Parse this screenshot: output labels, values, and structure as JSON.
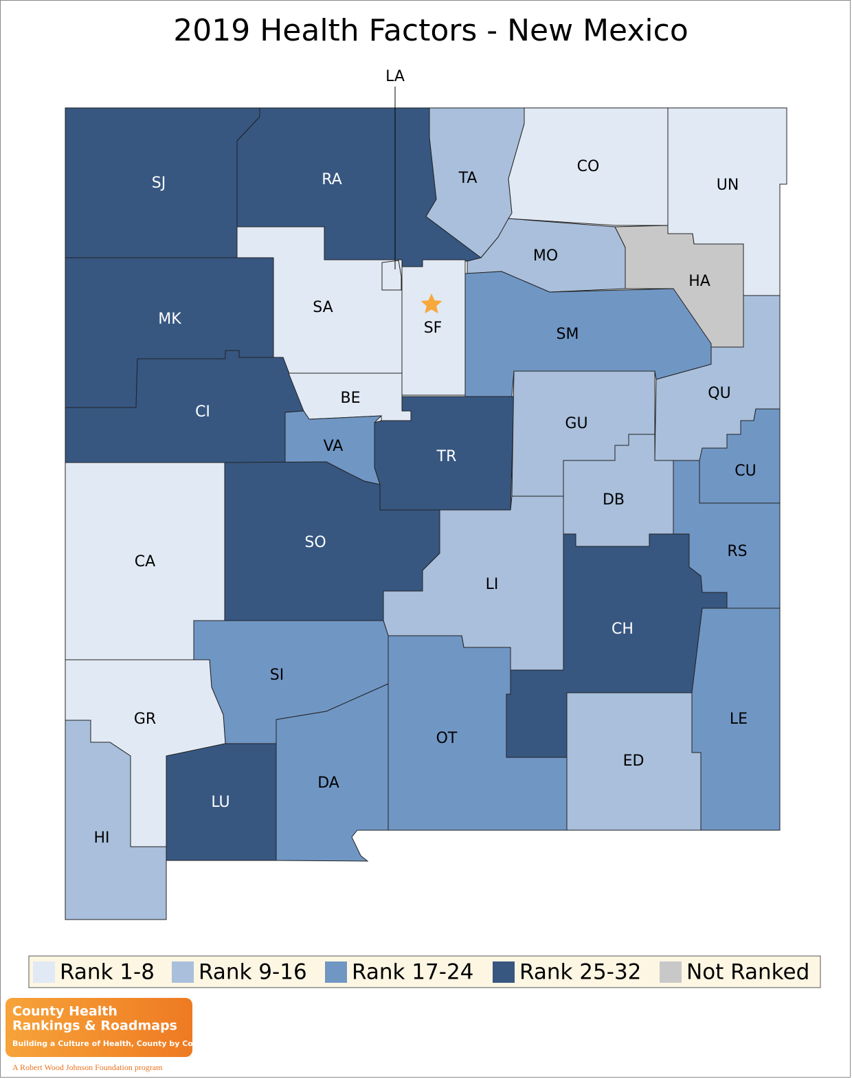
{
  "title": "2019 Health Factors - New Mexico",
  "counties": [
    {
      "label": "SJ",
      "color": "#375781"
    },
    {
      "label": "RA",
      "color": "#375781"
    },
    {
      "label": "TA",
      "color": "#a9bfdb"
    },
    {
      "label": "CO",
      "color": "#e1e9f4"
    },
    {
      "label": "UN",
      "color": "#e1e9f4"
    },
    {
      "label": "MO",
      "color": "#a9bfdb"
    },
    {
      "label": "HA",
      "color": "#c8c8c8"
    },
    {
      "label": "SA",
      "color": "#e1e9f4"
    },
    {
      "label": "SF",
      "color": "#e1e9f4"
    },
    {
      "label": "LA",
      "color": "#e1e9f4"
    },
    {
      "label": "SM",
      "color": "#7096c4"
    },
    {
      "label": "MK",
      "color": "#375781"
    },
    {
      "label": "CI",
      "color": "#375781"
    },
    {
      "label": "BE",
      "color": "#e1e9f4"
    },
    {
      "label": "VA",
      "color": "#7096c4"
    },
    {
      "label": "TR",
      "color": "#375781"
    },
    {
      "label": "GU",
      "color": "#a9bfdb"
    },
    {
      "label": "QU",
      "color": "#a9bfdb"
    },
    {
      "label": "CU",
      "color": "#7096c4"
    },
    {
      "label": "DB",
      "color": "#a9bfdb"
    },
    {
      "label": "RS",
      "color": "#7096c4"
    },
    {
      "label": "CA",
      "color": "#e1e9f4"
    },
    {
      "label": "SO",
      "color": "#375781"
    },
    {
      "label": "LI",
      "color": "#a9bfdb"
    },
    {
      "label": "CH",
      "color": "#375781"
    },
    {
      "label": "LE",
      "color": "#7096c4"
    },
    {
      "label": "ED",
      "color": "#a9bfdb"
    },
    {
      "label": "OT",
      "color": "#7096c4"
    },
    {
      "label": "SI",
      "color": "#7096c4"
    },
    {
      "label": "GR",
      "color": "#e1e9f4"
    },
    {
      "label": "HI",
      "color": "#a9bfdb"
    },
    {
      "label": "LU",
      "color": "#375781"
    },
    {
      "label": "DA",
      "color": "#7096c4"
    }
  ],
  "legend": [
    {
      "label": "Rank 1-8",
      "color": "#e1e9f4"
    },
    {
      "label": "Rank 9-16",
      "color": "#a9bfdb"
    },
    {
      "label": "Rank 17-24",
      "color": "#7096c4"
    },
    {
      "label": "Rank 25-32",
      "color": "#375781"
    },
    {
      "label": "Not Ranked",
      "color": "#c8c8c8"
    }
  ],
  "logo": {
    "line1": "County Health",
    "line2": "Rankings & Roadmaps",
    "tagline": "Building a Culture of Health, County by County",
    "footer": "A Robert Wood Johnson Foundation program"
  }
}
